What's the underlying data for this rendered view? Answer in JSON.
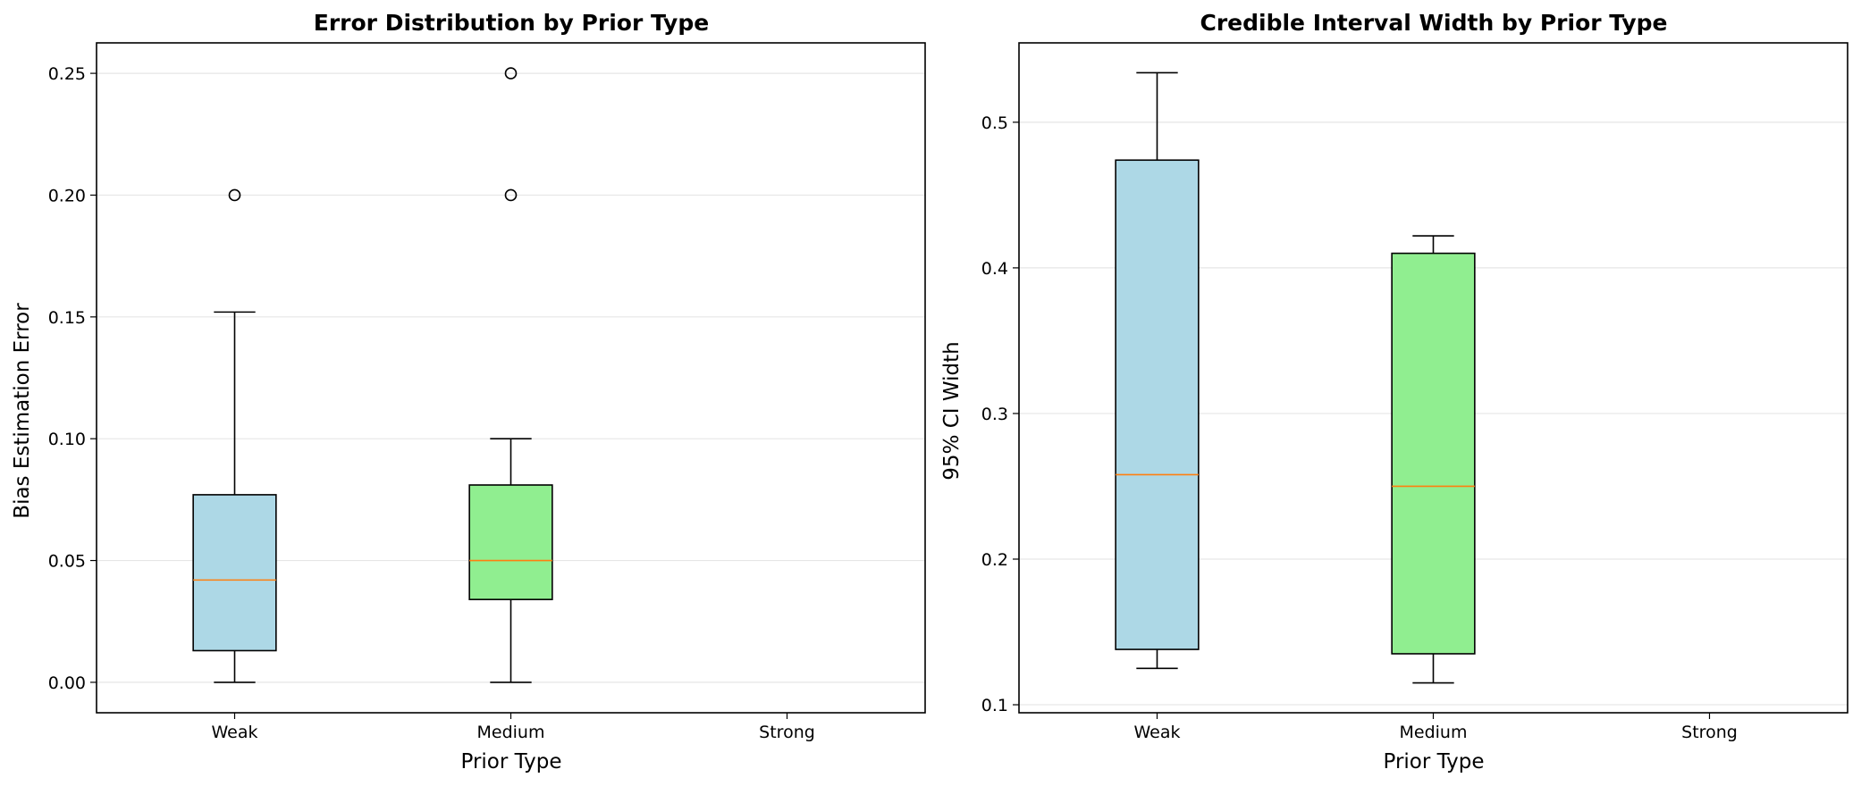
{
  "colors": {
    "background": "#ffffff",
    "axes": "#000000",
    "grid": "#e6e6e6",
    "median": "#ff7f0e",
    "whisker": "#000000",
    "flier_edge": "#000000"
  },
  "chart_data": [
    {
      "type": "box",
      "title": "Error Distribution by Prior Type",
      "xlabel": "Prior Type",
      "ylabel": "Bias Estimation Error",
      "categories": [
        "Weak",
        "Medium",
        "Strong"
      ],
      "ylim": [
        -0.0125,
        0.2625
      ],
      "yticks": [
        0.0,
        0.05,
        0.1,
        0.15,
        0.2,
        0.25
      ],
      "ytick_labels": [
        "0.00",
        "0.05",
        "0.10",
        "0.15",
        "0.20",
        "0.25"
      ],
      "grid": "y",
      "boxes": [
        {
          "category": "Weak",
          "whisker_low": 0.0,
          "q1": 0.013,
          "median": 0.042,
          "q3": 0.077,
          "whisker_high": 0.152,
          "fliers": [
            0.2
          ],
          "color": "#add8e6"
        },
        {
          "category": "Medium",
          "whisker_low": 0.0,
          "q1": 0.034,
          "median": 0.05,
          "q3": 0.081,
          "whisker_high": 0.1,
          "fliers": [
            0.2,
            0.25
          ],
          "color": "#90ee90"
        },
        {
          "category": "Strong",
          "whisker_low": null,
          "q1": null,
          "median": null,
          "q3": null,
          "whisker_high": null,
          "fliers": [],
          "color": "#f08080"
        }
      ]
    },
    {
      "type": "box",
      "title": "Credible Interval Width by Prior Type",
      "xlabel": "Prior Type",
      "ylabel": "95% CI Width",
      "categories": [
        "Weak",
        "Medium",
        "Strong"
      ],
      "ylim": [
        0.0945,
        0.5545
      ],
      "yticks": [
        0.1,
        0.2,
        0.3,
        0.4,
        0.5
      ],
      "ytick_labels": [
        "0.1",
        "0.2",
        "0.3",
        "0.4",
        "0.5"
      ],
      "grid": "y",
      "boxes": [
        {
          "category": "Weak",
          "whisker_low": 0.125,
          "q1": 0.138,
          "median": 0.258,
          "q3": 0.474,
          "whisker_high": 0.534,
          "fliers": [],
          "color": "#add8e6"
        },
        {
          "category": "Medium",
          "whisker_low": 0.115,
          "q1": 0.135,
          "median": 0.25,
          "q3": 0.41,
          "whisker_high": 0.422,
          "fliers": [],
          "color": "#90ee90"
        },
        {
          "category": "Strong",
          "whisker_low": null,
          "q1": null,
          "median": null,
          "q3": null,
          "whisker_high": null,
          "fliers": [],
          "color": "#f08080"
        }
      ]
    }
  ]
}
